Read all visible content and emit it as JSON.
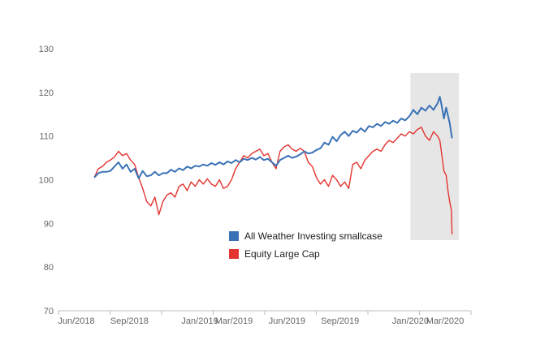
{
  "chart_data": {
    "type": "line",
    "title": "",
    "xlabel": "",
    "ylabel": "",
    "ylim": [
      70,
      130
    ],
    "yticks": [
      70,
      80,
      90,
      100,
      110,
      120,
      130
    ],
    "xlim": [
      "2018-05-01",
      "2020-04-15"
    ],
    "xticks": [
      {
        "date": "2018-06-01",
        "label": "Jun/2018"
      },
      {
        "date": "2018-09-01",
        "label": "Sep/2018"
      },
      {
        "date": "2019-01-01",
        "label": "Jan/2019"
      },
      {
        "date": "2019-03-01",
        "label": "Mar/2019"
      },
      {
        "date": "2019-06-01",
        "label": "Jun/2019"
      },
      {
        "date": "2019-09-01",
        "label": "Sep/2019"
      },
      {
        "date": "2020-01-01",
        "label": "Jan/2020"
      },
      {
        "date": "2020-03-01",
        "label": "Mar/2020"
      }
    ],
    "grid": false,
    "legend_position": "bottom-right",
    "highlight": {
      "from": "2020-01-01",
      "to": "2020-03-25",
      "color": "#e6e6e6"
    },
    "series": [
      {
        "name": "All Weather Investing smallcase",
        "color": "#3a72b6",
        "points": [
          [
            "2018-07-02",
            100.5
          ],
          [
            "2018-07-09",
            101.5
          ],
          [
            "2018-07-16",
            101.8
          ],
          [
            "2018-07-23",
            101.8
          ],
          [
            "2018-07-30",
            102.0
          ],
          [
            "2018-08-06",
            103.0
          ],
          [
            "2018-08-13",
            104.0
          ],
          [
            "2018-08-20",
            102.5
          ],
          [
            "2018-08-27",
            103.5
          ],
          [
            "2018-09-03",
            101.8
          ],
          [
            "2018-09-10",
            102.5
          ],
          [
            "2018-09-17",
            100.3
          ],
          [
            "2018-09-24",
            102.0
          ],
          [
            "2018-10-01",
            100.8
          ],
          [
            "2018-10-08",
            101.0
          ],
          [
            "2018-10-15",
            101.8
          ],
          [
            "2018-10-22",
            101.0
          ],
          [
            "2018-10-29",
            101.5
          ],
          [
            "2018-11-05",
            101.5
          ],
          [
            "2018-11-12",
            102.3
          ],
          [
            "2018-11-19",
            101.8
          ],
          [
            "2018-11-26",
            102.6
          ],
          [
            "2018-12-03",
            102.2
          ],
          [
            "2018-12-10",
            103.0
          ],
          [
            "2018-12-17",
            102.6
          ],
          [
            "2018-12-24",
            103.2
          ],
          [
            "2018-12-31",
            103.0
          ],
          [
            "2019-01-07",
            103.5
          ],
          [
            "2019-01-14",
            103.2
          ],
          [
            "2019-01-21",
            103.8
          ],
          [
            "2019-01-28",
            103.4
          ],
          [
            "2019-02-04",
            104.0
          ],
          [
            "2019-02-11",
            103.5
          ],
          [
            "2019-02-18",
            104.2
          ],
          [
            "2019-02-25",
            103.8
          ],
          [
            "2019-03-04",
            104.5
          ],
          [
            "2019-03-11",
            104.0
          ],
          [
            "2019-03-18",
            104.8
          ],
          [
            "2019-03-25",
            104.5
          ],
          [
            "2019-04-01",
            105.0
          ],
          [
            "2019-04-08",
            104.6
          ],
          [
            "2019-04-15",
            105.2
          ],
          [
            "2019-04-22",
            104.5
          ],
          [
            "2019-04-29",
            104.8
          ],
          [
            "2019-05-06",
            104.0
          ],
          [
            "2019-05-13",
            103.2
          ],
          [
            "2019-05-20",
            104.5
          ],
          [
            "2019-05-27",
            105.0
          ],
          [
            "2019-06-03",
            105.5
          ],
          [
            "2019-06-10",
            105.0
          ],
          [
            "2019-06-17",
            105.3
          ],
          [
            "2019-06-24",
            105.8
          ],
          [
            "2019-07-01",
            106.5
          ],
          [
            "2019-07-08",
            106.0
          ],
          [
            "2019-07-15",
            106.2
          ],
          [
            "2019-07-22",
            106.8
          ],
          [
            "2019-07-29",
            107.2
          ],
          [
            "2019-08-05",
            108.5
          ],
          [
            "2019-08-12",
            108.0
          ],
          [
            "2019-08-19",
            109.8
          ],
          [
            "2019-08-26",
            108.8
          ],
          [
            "2019-09-02",
            110.2
          ],
          [
            "2019-09-09",
            111.0
          ],
          [
            "2019-09-16",
            110.0
          ],
          [
            "2019-09-23",
            111.2
          ],
          [
            "2019-09-30",
            110.8
          ],
          [
            "2019-10-07",
            111.8
          ],
          [
            "2019-10-14",
            111.0
          ],
          [
            "2019-10-21",
            112.3
          ],
          [
            "2019-10-28",
            112.0
          ],
          [
            "2019-11-04",
            112.8
          ],
          [
            "2019-11-11",
            112.3
          ],
          [
            "2019-11-18",
            113.2
          ],
          [
            "2019-11-25",
            112.8
          ],
          [
            "2019-12-02",
            113.5
          ],
          [
            "2019-12-09",
            113.0
          ],
          [
            "2019-12-16",
            114.0
          ],
          [
            "2019-12-23",
            113.6
          ],
          [
            "2019-12-30",
            114.5
          ],
          [
            "2020-01-06",
            116.0
          ],
          [
            "2020-01-13",
            115.0
          ],
          [
            "2020-01-20",
            116.5
          ],
          [
            "2020-01-27",
            115.8
          ],
          [
            "2020-02-03",
            117.0
          ],
          [
            "2020-02-10",
            116.0
          ],
          [
            "2020-02-17",
            117.5
          ],
          [
            "2020-02-21",
            119.0
          ],
          [
            "2020-02-24",
            117.0
          ],
          [
            "2020-02-28",
            114.0
          ],
          [
            "2020-03-03",
            116.5
          ],
          [
            "2020-03-09",
            113.0
          ],
          [
            "2020-03-13",
            109.5
          ]
        ]
      },
      {
        "name": "Equity Large Cap",
        "color": "#e3342f",
        "points": [
          [
            "2018-07-02",
            100.5
          ],
          [
            "2018-07-09",
            102.5
          ],
          [
            "2018-07-16",
            103.0
          ],
          [
            "2018-07-23",
            104.0
          ],
          [
            "2018-07-30",
            104.5
          ],
          [
            "2018-08-06",
            105.2
          ],
          [
            "2018-08-13",
            106.5
          ],
          [
            "2018-08-20",
            105.5
          ],
          [
            "2018-08-27",
            106.0
          ],
          [
            "2018-09-03",
            104.5
          ],
          [
            "2018-09-10",
            103.5
          ],
          [
            "2018-09-17",
            100.5
          ],
          [
            "2018-09-24",
            98.0
          ],
          [
            "2018-10-01",
            95.0
          ],
          [
            "2018-10-08",
            94.0
          ],
          [
            "2018-10-15",
            96.0
          ],
          [
            "2018-10-22",
            92.0
          ],
          [
            "2018-10-29",
            95.0
          ],
          [
            "2018-11-05",
            96.5
          ],
          [
            "2018-11-12",
            97.0
          ],
          [
            "2018-11-19",
            96.0
          ],
          [
            "2018-11-26",
            98.5
          ],
          [
            "2018-12-03",
            99.0
          ],
          [
            "2018-12-10",
            97.5
          ],
          [
            "2018-12-17",
            99.5
          ],
          [
            "2018-12-24",
            98.5
          ],
          [
            "2018-12-31",
            100.0
          ],
          [
            "2019-01-07",
            99.0
          ],
          [
            "2019-01-14",
            100.2
          ],
          [
            "2019-01-21",
            99.0
          ],
          [
            "2019-01-28",
            98.5
          ],
          [
            "2019-02-04",
            100.0
          ],
          [
            "2019-02-11",
            98.0
          ],
          [
            "2019-02-18",
            98.5
          ],
          [
            "2019-02-25",
            100.0
          ],
          [
            "2019-03-04",
            102.5
          ],
          [
            "2019-03-11",
            104.0
          ],
          [
            "2019-03-18",
            105.5
          ],
          [
            "2019-03-25",
            105.0
          ],
          [
            "2019-04-01",
            106.0
          ],
          [
            "2019-04-08",
            106.5
          ],
          [
            "2019-04-15",
            107.0
          ],
          [
            "2019-04-22",
            105.5
          ],
          [
            "2019-04-29",
            106.0
          ],
          [
            "2019-05-06",
            104.0
          ],
          [
            "2019-05-13",
            102.5
          ],
          [
            "2019-05-20",
            106.5
          ],
          [
            "2019-05-27",
            107.5
          ],
          [
            "2019-06-03",
            108.0
          ],
          [
            "2019-06-10",
            107.0
          ],
          [
            "2019-06-17",
            106.5
          ],
          [
            "2019-06-24",
            107.2
          ],
          [
            "2019-07-01",
            106.5
          ],
          [
            "2019-07-08",
            104.0
          ],
          [
            "2019-07-15",
            103.0
          ],
          [
            "2019-07-22",
            100.5
          ],
          [
            "2019-07-29",
            99.0
          ],
          [
            "2019-08-05",
            100.0
          ],
          [
            "2019-08-12",
            98.5
          ],
          [
            "2019-08-19",
            101.0
          ],
          [
            "2019-08-26",
            100.0
          ],
          [
            "2019-09-02",
            98.5
          ],
          [
            "2019-09-09",
            99.5
          ],
          [
            "2019-09-16",
            98.0
          ],
          [
            "2019-09-23",
            103.5
          ],
          [
            "2019-09-30",
            104.0
          ],
          [
            "2019-10-07",
            102.5
          ],
          [
            "2019-10-14",
            104.5
          ],
          [
            "2019-10-21",
            105.5
          ],
          [
            "2019-10-28",
            106.5
          ],
          [
            "2019-11-04",
            107.0
          ],
          [
            "2019-11-11",
            106.5
          ],
          [
            "2019-11-18",
            108.0
          ],
          [
            "2019-11-25",
            109.0
          ],
          [
            "2019-12-02",
            108.5
          ],
          [
            "2019-12-09",
            109.5
          ],
          [
            "2019-12-16",
            110.5
          ],
          [
            "2019-12-23",
            110.0
          ],
          [
            "2019-12-30",
            111.0
          ],
          [
            "2020-01-06",
            110.5
          ],
          [
            "2020-01-13",
            111.5
          ],
          [
            "2020-01-20",
            112.0
          ],
          [
            "2020-01-27",
            110.0
          ],
          [
            "2020-02-03",
            109.0
          ],
          [
            "2020-02-10",
            111.0
          ],
          [
            "2020-02-17",
            110.0
          ],
          [
            "2020-02-21",
            109.0
          ],
          [
            "2020-02-24",
            106.0
          ],
          [
            "2020-02-28",
            102.0
          ],
          [
            "2020-03-03",
            101.0
          ],
          [
            "2020-03-06",
            97.5
          ],
          [
            "2020-03-09",
            95.0
          ],
          [
            "2020-03-12",
            93.0
          ],
          [
            "2020-03-13",
            87.5
          ]
        ]
      }
    ]
  }
}
